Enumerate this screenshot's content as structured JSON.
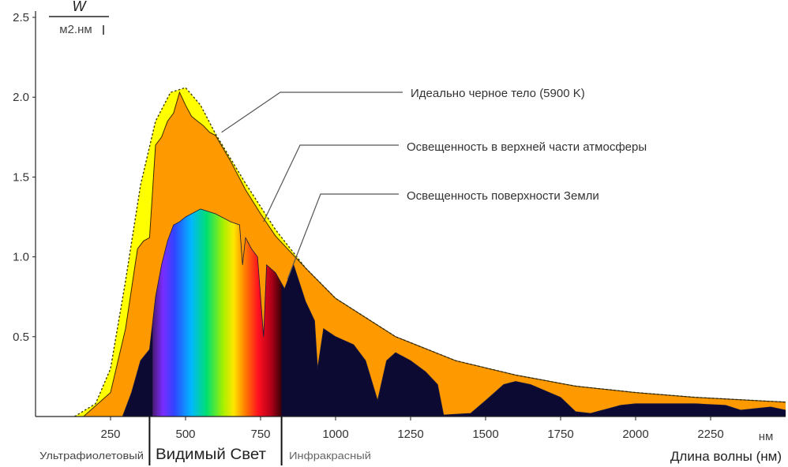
{
  "chart_data": {
    "type": "area",
    "title": "",
    "xlabel": "Длина волны (нм)",
    "x_unit": "нм",
    "ylabel_numerator": "W",
    "ylabel_denominator": "м2.нм",
    "xlim": [
      0,
      2500
    ],
    "ylim": [
      0,
      2.5
    ],
    "x_ticks": [
      250,
      500,
      750,
      1000,
      1250,
      1500,
      1750,
      2000,
      2250
    ],
    "x_tick_labels": [
      "250",
      "500",
      "750",
      "1000",
      "1250",
      "1500",
      "1750",
      "2000",
      "2250"
    ],
    "y_ticks": [
      0.5,
      1.0,
      1.5,
      2.0,
      2.5
    ],
    "y_tick_labels": [
      "0.5",
      "1.0",
      "1.5",
      "2.0",
      "2.5"
    ],
    "regions": [
      {
        "name": "Ультрафиолетовый",
        "from": 0,
        "to": 380
      },
      {
        "name": "Видимый Свет",
        "from": 380,
        "to": 820
      },
      {
        "name": "Инфракрасный",
        "from": 820,
        "to": 2500
      }
    ],
    "colors": {
      "blackbody": "#ffff00",
      "top_atmosphere": "#ff9900",
      "surface": "#0c0a33",
      "axis": "#222222",
      "callout": "#555555"
    },
    "series": [
      {
        "name": "Идеально черное тело (5900 K)",
        "style": "dashed-outline",
        "points": [
          [
            130,
            0
          ],
          [
            200,
            0.08
          ],
          [
            250,
            0.3
          ],
          [
            300,
            0.85
          ],
          [
            350,
            1.45
          ],
          [
            400,
            1.85
          ],
          [
            450,
            2.03
          ],
          [
            500,
            2.06
          ],
          [
            550,
            1.95
          ],
          [
            600,
            1.77
          ],
          [
            700,
            1.46
          ],
          [
            800,
            1.17
          ],
          [
            900,
            0.93
          ],
          [
            1000,
            0.74
          ],
          [
            1200,
            0.5
          ],
          [
            1400,
            0.35
          ],
          [
            1600,
            0.26
          ],
          [
            1800,
            0.19
          ],
          [
            2000,
            0.15
          ],
          [
            2200,
            0.12
          ],
          [
            2500,
            0.09
          ]
        ]
      },
      {
        "name": "Освещенность в верхней части атмосферы",
        "points": [
          [
            160,
            0
          ],
          [
            250,
            0.15
          ],
          [
            300,
            0.55
          ],
          [
            320,
            0.8
          ],
          [
            340,
            1.05
          ],
          [
            360,
            1.1
          ],
          [
            380,
            1.12
          ],
          [
            400,
            1.7
          ],
          [
            420,
            1.75
          ],
          [
            440,
            1.85
          ],
          [
            460,
            1.9
          ],
          [
            480,
            2.03
          ],
          [
            500,
            1.95
          ],
          [
            520,
            1.88
          ],
          [
            540,
            1.85
          ],
          [
            560,
            1.82
          ],
          [
            580,
            1.78
          ],
          [
            600,
            1.76
          ],
          [
            650,
            1.6
          ],
          [
            700,
            1.42
          ],
          [
            750,
            1.27
          ],
          [
            800,
            1.13
          ],
          [
            900,
            0.93
          ],
          [
            1000,
            0.74
          ],
          [
            1200,
            0.5
          ],
          [
            1400,
            0.35
          ],
          [
            1600,
            0.26
          ],
          [
            1800,
            0.19
          ],
          [
            2000,
            0.15
          ],
          [
            2200,
            0.12
          ],
          [
            2500,
            0.09
          ]
        ]
      },
      {
        "name": "Освещенность поверхности Земли",
        "points": [
          [
            290,
            0
          ],
          [
            320,
            0.15
          ],
          [
            350,
            0.35
          ],
          [
            380,
            0.42
          ],
          [
            400,
            0.75
          ],
          [
            420,
            0.95
          ],
          [
            440,
            1.1
          ],
          [
            460,
            1.2
          ],
          [
            480,
            1.22
          ],
          [
            500,
            1.25
          ],
          [
            550,
            1.3
          ],
          [
            600,
            1.27
          ],
          [
            650,
            1.22
          ],
          [
            680,
            1.2
          ],
          [
            690,
            0.95
          ],
          [
            700,
            1.12
          ],
          [
            720,
            1.05
          ],
          [
            740,
            1.0
          ],
          [
            760,
            0.5
          ],
          [
            770,
            0.95
          ],
          [
            800,
            0.9
          ],
          [
            830,
            0.8
          ],
          [
            860,
            0.95
          ],
          [
            900,
            0.72
          ],
          [
            930,
            0.6
          ],
          [
            940,
            0.3
          ],
          [
            960,
            0.55
          ],
          [
            1000,
            0.5
          ],
          [
            1060,
            0.45
          ],
          [
            1100,
            0.35
          ],
          [
            1140,
            0.1
          ],
          [
            1170,
            0.35
          ],
          [
            1200,
            0.4
          ],
          [
            1250,
            0.35
          ],
          [
            1300,
            0.28
          ],
          [
            1340,
            0.2
          ],
          [
            1360,
            0.01
          ],
          [
            1450,
            0.02
          ],
          [
            1500,
            0.1
          ],
          [
            1560,
            0.2
          ],
          [
            1600,
            0.22
          ],
          [
            1650,
            0.2
          ],
          [
            1700,
            0.16
          ],
          [
            1750,
            0.12
          ],
          [
            1800,
            0.03
          ],
          [
            1850,
            0.02
          ],
          [
            1950,
            0.07
          ],
          [
            2000,
            0.08
          ],
          [
            2100,
            0.08
          ],
          [
            2200,
            0.08
          ],
          [
            2300,
            0.07
          ],
          [
            2350,
            0.04
          ],
          [
            2400,
            0.05
          ],
          [
            2450,
            0.06
          ],
          [
            2500,
            0.04
          ]
        ]
      }
    ],
    "spectrum_band": {
      "from": 390,
      "to": 820
    }
  }
}
